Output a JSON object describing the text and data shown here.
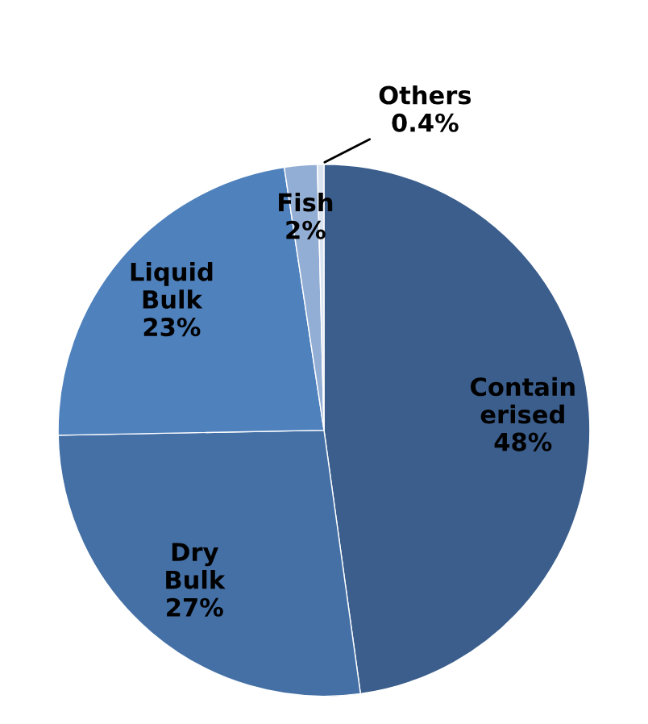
{
  "chart_data": {
    "type": "pie",
    "categories": [
      "Contain\nerised",
      "Dry\nBulk",
      "Liquid\nBulk",
      "Fish",
      "Others"
    ],
    "values": [
      48,
      27,
      23,
      2,
      0.4
    ],
    "value_labels": [
      "48%",
      "27%",
      "23%",
      "2%",
      "0.4%"
    ],
    "colors": [
      "#3b5e8c",
      "#4470a6",
      "#4f81bd",
      "#93aed4",
      "#dae3f0"
    ],
    "legend": false
  }
}
